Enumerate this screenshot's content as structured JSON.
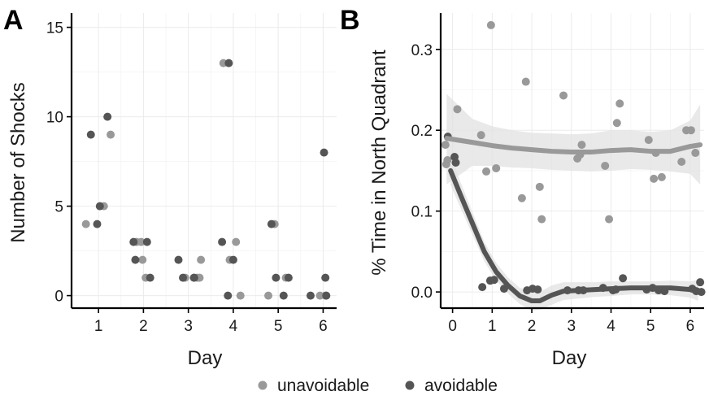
{
  "colors": {
    "unavoidable": "#999999",
    "avoidable": "#555555",
    "band": "#e2e2e2"
  },
  "legend": {
    "items": [
      {
        "label": "unavoidable",
        "series": "unavoidable"
      },
      {
        "label": "avoidable",
        "series": "avoidable"
      }
    ]
  },
  "chart_data": [
    {
      "panel_label": "A",
      "type": "scatter",
      "xlabel": "Day",
      "ylabel": "Number of Shocks",
      "xlim": [
        0.4,
        6.3
      ],
      "ylim": [
        -0.7,
        15.8
      ],
      "xticks": [
        1,
        2,
        3,
        4,
        5,
        6
      ],
      "yticks": [
        0,
        5,
        10,
        15
      ],
      "grid": true,
      "series": [
        {
          "name": "unavoidable",
          "points": [
            [
              0.72,
              4
            ],
            [
              1.12,
              5
            ],
            [
              1.27,
              9
            ],
            [
              1.85,
              3
            ],
            [
              1.95,
              3
            ],
            [
              1.98,
              2
            ],
            [
              2.05,
              1
            ],
            [
              2.93,
              1
            ],
            [
              3.12,
              1
            ],
            [
              3.2,
              1
            ],
            [
              3.28,
              2
            ],
            [
              3.25,
              1
            ],
            [
              3.78,
              13
            ],
            [
              3.92,
              2
            ],
            [
              4.06,
              3
            ],
            [
              4.16,
              0
            ],
            [
              4.78,
              0
            ],
            [
              4.92,
              4
            ],
            [
              5.17,
              1
            ],
            [
              5.93,
              0
            ],
            [
              6.05,
              0
            ]
          ]
        },
        {
          "name": "avoidable",
          "points": [
            [
              0.83,
              9
            ],
            [
              0.97,
              4
            ],
            [
              1.03,
              5
            ],
            [
              1.2,
              10
            ],
            [
              1.78,
              3
            ],
            [
              1.82,
              2
            ],
            [
              2.08,
              3
            ],
            [
              2.15,
              1
            ],
            [
              2.78,
              2
            ],
            [
              2.88,
              1
            ],
            [
              3.13,
              1
            ],
            [
              3.75,
              3
            ],
            [
              3.88,
              0
            ],
            [
              3.9,
              13
            ],
            [
              4.0,
              2
            ],
            [
              4.85,
              4
            ],
            [
              4.95,
              1
            ],
            [
              5.12,
              0
            ],
            [
              5.23,
              1
            ],
            [
              5.72,
              0
            ],
            [
              6.02,
              8
            ],
            [
              6.05,
              1
            ],
            [
              6.07,
              0
            ]
          ]
        }
      ]
    },
    {
      "panel_label": "B",
      "type": "scatter",
      "xlabel": "Day",
      "ylabel": "% Time in North Quadrant",
      "xlim": [
        -0.3,
        6.35
      ],
      "ylim": [
        -0.02,
        0.345
      ],
      "xticks": [
        0,
        1,
        2,
        3,
        4,
        5,
        6
      ],
      "yticks": [
        0.0,
        0.1,
        0.2,
        0.3
      ],
      "ytick_labels": [
        "0.0",
        "0.1",
        "0.2",
        "0.3"
      ],
      "grid": true,
      "series": [
        {
          "name": "unavoidable",
          "points": [
            [
              -0.18,
              0.182
            ],
            [
              -0.16,
              0.158
            ],
            [
              -0.13,
              0.163
            ],
            [
              0.12,
              0.226
            ],
            [
              0.72,
              0.194
            ],
            [
              0.85,
              0.149
            ],
            [
              0.97,
              0.33
            ],
            [
              1.1,
              0.153
            ],
            [
              1.75,
              0.116
            ],
            [
              1.85,
              0.26
            ],
            [
              2.2,
              0.13
            ],
            [
              2.25,
              0.09
            ],
            [
              2.8,
              0.243
            ],
            [
              3.15,
              0.165
            ],
            [
              3.22,
              0.17
            ],
            [
              3.26,
              0.182
            ],
            [
              3.85,
              0.156
            ],
            [
              3.95,
              0.09
            ],
            [
              4.15,
              0.209
            ],
            [
              4.22,
              0.233
            ],
            [
              4.95,
              0.188
            ],
            [
              5.08,
              0.14
            ],
            [
              5.13,
              0.172
            ],
            [
              5.28,
              0.142
            ],
            [
              5.78,
              0.161
            ],
            [
              5.9,
              0.2
            ],
            [
              6.02,
              0.2
            ],
            [
              6.13,
              0.172
            ]
          ]
        },
        {
          "name": "avoidable",
          "points": [
            [
              -0.12,
              0.192
            ],
            [
              0.05,
              0.167
            ],
            [
              0.08,
              0.16
            ],
            [
              0.75,
              0.006
            ],
            [
              0.95,
              0.014
            ],
            [
              1.05,
              0.015
            ],
            [
              1.3,
              0.004
            ],
            [
              1.88,
              0.002
            ],
            [
              2.02,
              0.004
            ],
            [
              2.15,
              0.003
            ],
            [
              2.9,
              0.002
            ],
            [
              3.18,
              0.002
            ],
            [
              3.3,
              0.002
            ],
            [
              3.8,
              0.005
            ],
            [
              4.05,
              0.002
            ],
            [
              4.12,
              0.003
            ],
            [
              4.3,
              0.017
            ],
            [
              4.9,
              0.003
            ],
            [
              5.05,
              0.005
            ],
            [
              5.2,
              0.002
            ],
            [
              5.35,
              0.001
            ],
            [
              6.05,
              0.004
            ],
            [
              6.15,
              0.001
            ],
            [
              6.25,
              0.012
            ],
            [
              6.28,
              0.0
            ]
          ]
        }
      ],
      "smooth": [
        {
          "name": "unavoidable",
          "line": [
            [
              -0.15,
              0.19
            ],
            [
              0.5,
              0.185
            ],
            [
              1,
              0.181
            ],
            [
              1.5,
              0.178
            ],
            [
              2,
              0.176
            ],
            [
              2.5,
              0.174
            ],
            [
              3,
              0.173
            ],
            [
              3.5,
              0.173
            ],
            [
              4,
              0.175
            ],
            [
              4.5,
              0.176
            ],
            [
              5,
              0.174
            ],
            [
              5.5,
              0.174
            ],
            [
              6,
              0.18
            ],
            [
              6.25,
              0.182
            ]
          ],
          "band_upper": [
            [
              -0.15,
              0.245
            ],
            [
              0.5,
              0.214
            ],
            [
              1,
              0.205
            ],
            [
              1.5,
              0.2
            ],
            [
              2,
              0.197
            ],
            [
              2.5,
              0.196
            ],
            [
              3,
              0.195
            ],
            [
              3.5,
              0.196
            ],
            [
              4,
              0.2
            ],
            [
              4.5,
              0.2
            ],
            [
              5,
              0.198
            ],
            [
              5.5,
              0.2
            ],
            [
              6,
              0.212
            ],
            [
              6.25,
              0.232
            ]
          ],
          "band_lower": [
            [
              -0.15,
              0.133
            ],
            [
              0.5,
              0.156
            ],
            [
              1,
              0.156
            ],
            [
              1.5,
              0.154
            ],
            [
              2,
              0.153
            ],
            [
              2.5,
              0.151
            ],
            [
              3,
              0.15
            ],
            [
              3.5,
              0.149
            ],
            [
              4,
              0.15
            ],
            [
              4.5,
              0.152
            ],
            [
              5,
              0.151
            ],
            [
              5.5,
              0.149
            ],
            [
              6,
              0.146
            ],
            [
              6.25,
              0.133
            ]
          ]
        },
        {
          "name": "avoidable",
          "line": [
            [
              -0.05,
              0.15
            ],
            [
              0.2,
              0.12
            ],
            [
              0.5,
              0.085
            ],
            [
              0.8,
              0.05
            ],
            [
              1.1,
              0.025
            ],
            [
              1.4,
              0.008
            ],
            [
              1.7,
              -0.005
            ],
            [
              2.0,
              -0.011
            ],
            [
              2.2,
              -0.011
            ],
            [
              2.5,
              -0.004
            ],
            [
              2.8,
              0.001
            ],
            [
              3.2,
              0.002
            ],
            [
              3.6,
              0.003
            ],
            [
              4,
              0.004
            ],
            [
              4.5,
              0.005
            ],
            [
              5,
              0.005
            ],
            [
              5.5,
              0.005
            ],
            [
              6,
              0.003
            ],
            [
              6.2,
              0.002
            ]
          ],
          "band_upper": [
            [
              -0.05,
              0.168
            ],
            [
              0.2,
              0.136
            ],
            [
              0.5,
              0.099
            ],
            [
              0.8,
              0.062
            ],
            [
              1.1,
              0.036
            ],
            [
              1.4,
              0.018
            ],
            [
              1.7,
              0.005
            ],
            [
              2.0,
              0.001
            ],
            [
              2.2,
              0.0
            ],
            [
              2.5,
              0.008
            ],
            [
              2.8,
              0.012
            ],
            [
              3.2,
              0.012
            ],
            [
              3.6,
              0.012
            ],
            [
              4,
              0.013
            ],
            [
              4.5,
              0.013
            ],
            [
              5,
              0.013
            ],
            [
              5.5,
              0.014
            ],
            [
              6,
              0.013
            ],
            [
              6.2,
              0.015
            ]
          ],
          "band_lower": [
            [
              -0.05,
              0.132
            ],
            [
              0.2,
              0.104
            ],
            [
              0.5,
              0.071
            ],
            [
              0.8,
              0.038
            ],
            [
              1.1,
              0.014
            ],
            [
              1.4,
              -0.002
            ],
            [
              1.7,
              -0.015
            ],
            [
              2.0,
              -0.023
            ],
            [
              2.2,
              -0.022
            ],
            [
              2.5,
              -0.016
            ],
            [
              2.8,
              -0.01
            ],
            [
              3.2,
              -0.008
            ],
            [
              3.6,
              -0.006
            ],
            [
              4,
              -0.005
            ],
            [
              4.5,
              -0.003
            ],
            [
              5,
              -0.003
            ],
            [
              5.5,
              -0.004
            ],
            [
              6,
              -0.007
            ],
            [
              6.2,
              -0.011
            ]
          ]
        }
      ]
    }
  ]
}
